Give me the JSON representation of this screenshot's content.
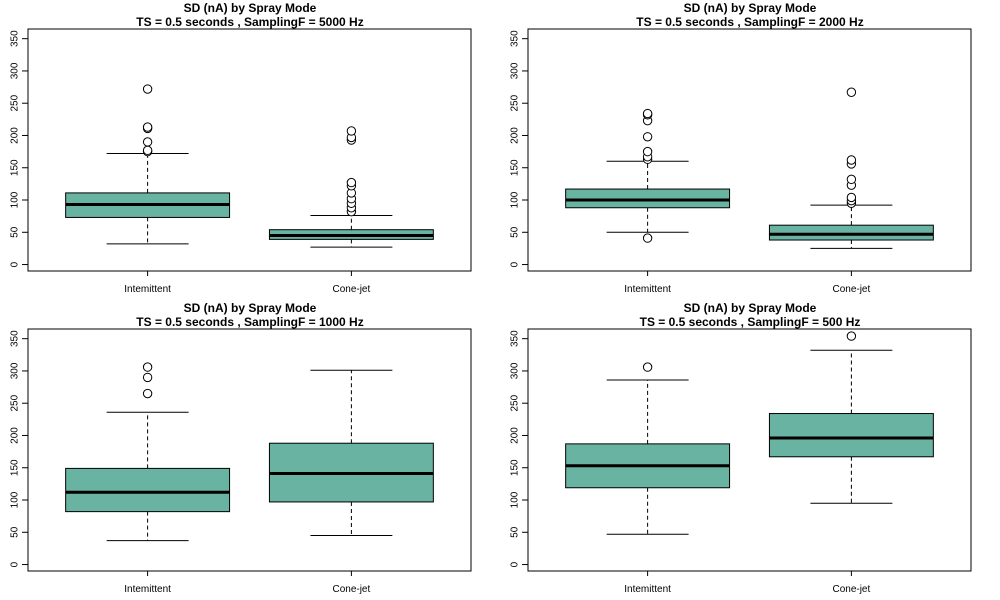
{
  "chart_data": [
    {
      "type": "box",
      "title": "SD (nA) by Spray Mode",
      "subtitle": "TS =  0.5  seconds , SamplingF =  5000  Hz",
      "categories": [
        "Intemittent",
        "Cone-jet"
      ],
      "yticks": [
        0,
        50,
        100,
        150,
        200,
        250,
        300,
        350
      ],
      "ylim": [
        -10,
        365
      ],
      "boxes": [
        {
          "whisker_low": 32,
          "q1": 73,
          "median": 93,
          "q3": 111,
          "whisker_high": 172,
          "outliers": [
            175,
            177,
            190,
            211,
            213,
            272
          ]
        },
        {
          "whisker_low": 27,
          "q1": 39,
          "median": 45,
          "q3": 54,
          "whisker_high": 76,
          "outliers": [
            82,
            88,
            95,
            102,
            111,
            122,
            127,
            193,
            197,
            207
          ]
        }
      ],
      "box_color": "#69b3a2",
      "grid": false
    },
    {
      "type": "box",
      "title": "SD (nA) by Spray Mode",
      "subtitle": "TS =  0.5  seconds , SamplingF =  2000  Hz",
      "categories": [
        "Intemittent",
        "Cone-jet"
      ],
      "yticks": [
        0,
        50,
        100,
        150,
        200,
        250,
        300,
        350
      ],
      "ylim": [
        -10,
        365
      ],
      "boxes": [
        {
          "whisker_low": 50,
          "q1": 88,
          "median": 100,
          "q3": 117,
          "whisker_high": 160,
          "outliers": [
            41,
            163,
            167,
            175,
            198,
            223,
            232,
            234
          ]
        },
        {
          "whisker_low": 25,
          "q1": 38,
          "median": 47,
          "q3": 61,
          "whisker_high": 92,
          "outliers": [
            95,
            99,
            104,
            123,
            132,
            156,
            162,
            267
          ]
        }
      ],
      "box_color": "#69b3a2",
      "grid": false
    },
    {
      "type": "box",
      "title": "SD (nA) by Spray Mode",
      "subtitle": "TS =  0.5  seconds , SamplingF =  1000  Hz",
      "categories": [
        "Intemittent",
        "Cone-jet"
      ],
      "yticks": [
        0,
        50,
        100,
        150,
        200,
        250,
        300,
        350
      ],
      "ylim": [
        -10,
        365
      ],
      "boxes": [
        {
          "whisker_low": 37,
          "q1": 82,
          "median": 112,
          "q3": 149,
          "whisker_high": 236,
          "outliers": [
            265,
            290,
            306
          ]
        },
        {
          "whisker_low": 45,
          "q1": 97,
          "median": 141,
          "q3": 188,
          "whisker_high": 301,
          "outliers": []
        }
      ],
      "box_color": "#69b3a2",
      "grid": false
    },
    {
      "type": "box",
      "title": "SD (nA) by Spray Mode",
      "subtitle": "TS =  0.5  seconds , SamplingF =  500  Hz",
      "categories": [
        "Intemittent",
        "Cone-jet"
      ],
      "yticks": [
        0,
        50,
        100,
        150,
        200,
        250,
        300,
        350
      ],
      "ylim": [
        -10,
        365
      ],
      "boxes": [
        {
          "whisker_low": 47,
          "q1": 119,
          "median": 153,
          "q3": 187,
          "whisker_high": 286,
          "outliers": [
            306
          ]
        },
        {
          "whisker_low": 95,
          "q1": 167,
          "median": 196,
          "q3": 234,
          "whisker_high": 332,
          "outliers": [
            354
          ]
        }
      ],
      "box_color": "#69b3a2",
      "grid": false
    }
  ]
}
